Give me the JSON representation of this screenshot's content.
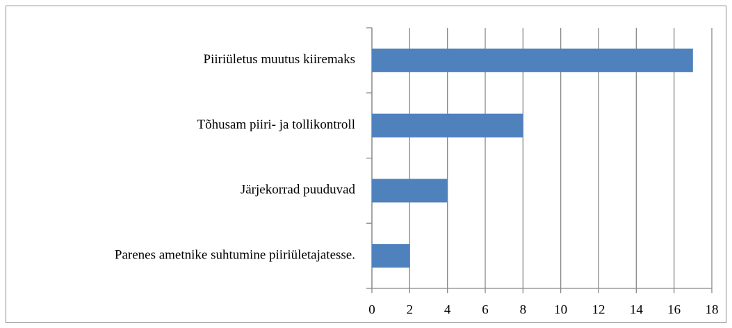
{
  "chart_data": {
    "type": "bar",
    "orientation": "horizontal",
    "categories": [
      "Piiriületus muutus kiiremaks",
      "Tõhusam piiri- ja tollikontroll",
      "Järjekorrad puuduvad",
      "Parenes ametnike suhtumine piiriületajatesse."
    ],
    "values": [
      17,
      8,
      4,
      2
    ],
    "color": "#4f81bd",
    "xlim": [
      0,
      18
    ],
    "xticks": [
      0,
      2,
      4,
      6,
      8,
      10,
      12,
      14,
      16,
      18
    ],
    "grid": true
  }
}
